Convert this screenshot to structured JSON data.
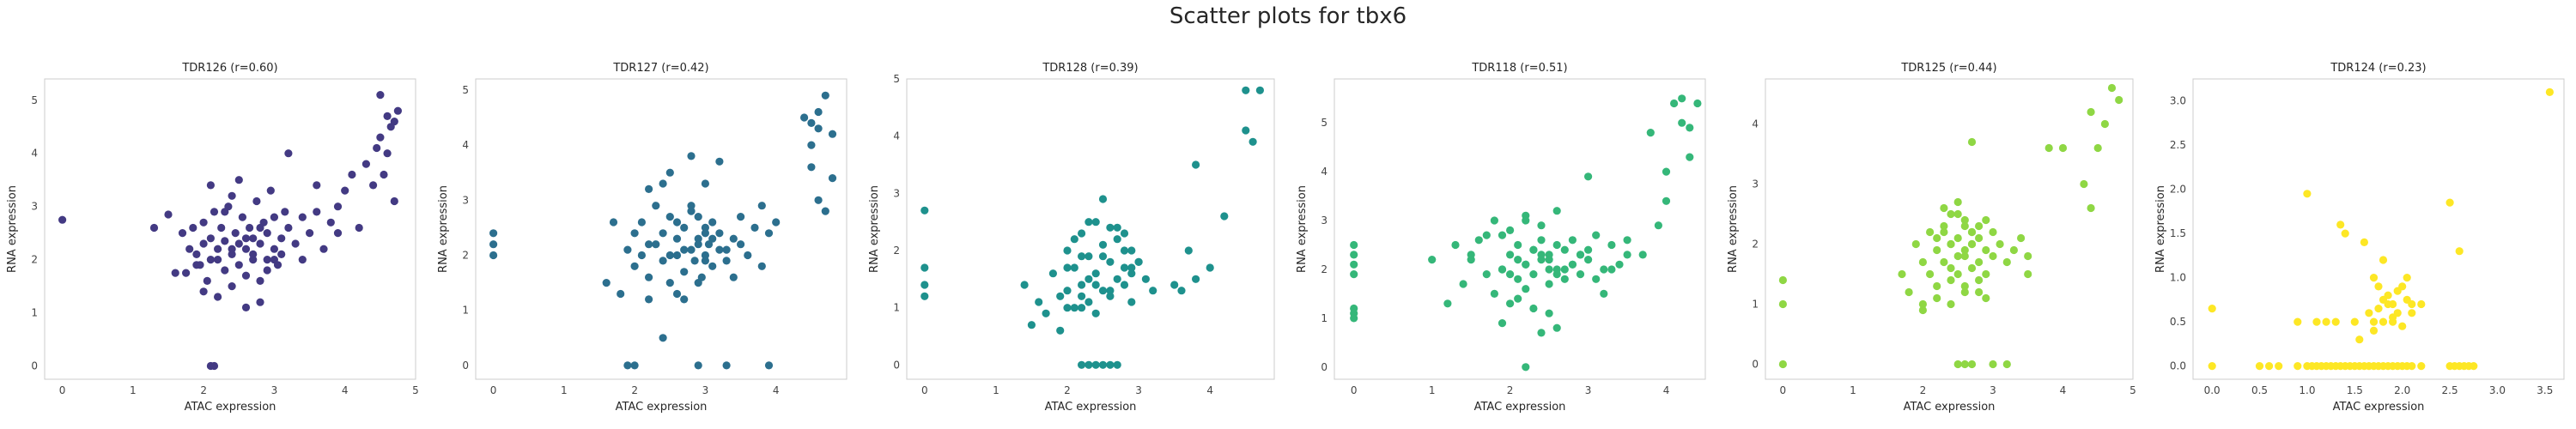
{
  "figure": {
    "title": "Scatter plots for tbx6"
  },
  "chart_data": [
    {
      "type": "scatter",
      "title": "TDR126 (r=0.60)",
      "xlabel": "ATAC expression",
      "ylabel": "RNA expression",
      "color": "#433a83",
      "xlim": [
        -0.25,
        5.0
      ],
      "ylim": [
        -0.25,
        5.4
      ],
      "xticks": [
        0,
        1,
        2,
        3,
        4,
        5
      ],
      "yticks": [
        0,
        1,
        2,
        3,
        4,
        5
      ],
      "grid": false,
      "x": [
        0.0,
        2.1,
        2.15,
        1.3,
        1.5,
        1.6,
        1.7,
        1.75,
        1.8,
        1.85,
        1.9,
        1.95,
        2.0,
        2.0,
        2.05,
        2.1,
        2.1,
        2.15,
        2.2,
        2.2,
        2.25,
        2.3,
        2.3,
        2.35,
        2.4,
        2.4,
        2.45,
        2.5,
        2.5,
        2.55,
        2.6,
        2.6,
        2.65,
        2.7,
        2.7,
        2.75,
        2.8,
        2.8,
        2.85,
        2.9,
        2.9,
        2.95,
        3.0,
        3.0,
        3.05,
        3.1,
        3.15,
        3.2,
        3.3,
        3.4,
        3.5,
        3.6,
        3.7,
        3.8,
        3.9,
        2.0,
        2.2,
        2.4,
        2.6,
        2.8,
        3.0,
        2.3,
        2.5,
        2.7,
        2.9,
        1.9,
        2.1,
        2.6,
        3.2,
        3.4,
        4.0,
        4.1,
        4.2,
        4.3,
        4.4,
        4.45,
        4.5,
        4.55,
        4.6,
        4.65,
        4.7,
        4.75,
        4.5,
        4.6,
        4.7,
        3.6,
        3.9,
        2.4,
        2.8,
        3.1
      ],
      "y": [
        2.75,
        0.0,
        0.0,
        2.6,
        2.85,
        1.75,
        2.5,
        1.75,
        2.2,
        2.6,
        2.1,
        1.9,
        2.3,
        2.7,
        1.6,
        2.0,
        2.4,
        2.9,
        1.3,
        2.2,
        2.6,
        1.8,
        2.35,
        3.0,
        1.5,
        2.1,
        2.5,
        1.9,
        2.3,
        2.8,
        1.7,
        2.2,
        2.6,
        2.0,
        2.4,
        3.1,
        1.6,
        2.3,
        2.7,
        2.0,
        2.5,
        3.3,
        2.2,
        2.8,
        1.9,
        2.4,
        2.9,
        2.6,
        2.3,
        2.8,
        2.5,
        2.9,
        2.2,
        2.7,
        3.0,
        1.4,
        2.0,
        2.2,
        2.4,
        2.6,
        2.0,
        2.9,
        3.5,
        2.1,
        1.8,
        1.9,
        3.4,
        1.1,
        4.0,
        2.0,
        3.3,
        3.6,
        2.6,
        3.8,
        3.4,
        4.1,
        4.3,
        3.6,
        4.0,
        4.5,
        3.1,
        4.8,
        5.1,
        4.7,
        4.6,
        3.4,
        2.5,
        3.2,
        1.2,
        2.1
      ]
    },
    {
      "type": "scatter",
      "title": "TDR127 (r=0.42)",
      "xlabel": "ATAC expression",
      "ylabel": "RNA expression",
      "color": "#2c6f8e",
      "xlim": [
        -0.25,
        5.0
      ],
      "ylim": [
        -0.25,
        5.2
      ],
      "xticks": [
        0,
        1,
        2,
        3,
        4
      ],
      "yticks": [
        0,
        1,
        2,
        3,
        4,
        5
      ],
      "grid": false,
      "x": [
        0.0,
        0.0,
        0.0,
        1.6,
        1.7,
        1.8,
        1.9,
        2.0,
        2.0,
        2.1,
        2.2,
        2.2,
        2.3,
        2.4,
        2.4,
        2.5,
        2.5,
        2.6,
        2.6,
        2.7,
        2.7,
        2.8,
        2.8,
        2.85,
        2.9,
        2.9,
        2.95,
        3.0,
        3.0,
        3.05,
        3.1,
        3.1,
        3.2,
        3.2,
        3.3,
        3.4,
        3.5,
        3.6,
        3.7,
        3.8,
        3.9,
        4.0,
        2.3,
        2.5,
        2.7,
        2.9,
        3.1,
        3.3,
        2.6,
        2.8,
        3.0,
        2.4,
        2.2,
        1.9,
        2.0,
        2.4,
        2.7,
        2.9,
        3.3,
        3.9,
        2.2,
        2.5,
        2.8,
        3.0,
        3.2,
        2.6,
        2.9,
        3.4,
        4.4,
        4.5,
        4.6,
        4.7,
        4.8,
        4.5,
        4.6,
        4.7,
        4.8,
        4.5,
        4.6,
        3.8,
        2.1,
        3.0,
        3.5
      ],
      "y": [
        2.4,
        2.2,
        2.0,
        1.5,
        2.6,
        1.3,
        2.1,
        2.4,
        1.8,
        2.6,
        1.6,
        2.2,
        2.9,
        1.9,
        2.4,
        1.5,
        2.7,
        2.0,
        2.3,
        1.7,
        2.5,
        2.1,
        2.9,
        1.9,
        2.3,
        2.7,
        1.6,
        2.0,
        2.5,
        2.2,
        1.8,
        2.6,
        2.1,
        2.4,
        1.9,
        2.3,
        2.7,
        2.0,
        2.5,
        1.8,
        2.4,
        2.6,
        2.2,
        2.0,
        2.1,
        2.2,
        2.3,
        2.1,
        2.6,
        2.8,
        2.4,
        3.3,
        1.2,
        0.0,
        0.0,
        0.5,
        1.2,
        0.0,
        0.0,
        0.0,
        3.2,
        3.5,
        3.8,
        3.3,
        3.7,
        1.3,
        1.5,
        1.6,
        4.5,
        4.4,
        4.3,
        4.9,
        4.2,
        3.6,
        3.0,
        2.8,
        3.4,
        4.0,
        4.6,
        2.9,
        2.0,
        1.9,
        2.2
      ]
    },
    {
      "type": "scatter",
      "title": "TDR128 (r=0.39)",
      "xlabel": "ATAC expression",
      "ylabel": "RNA expression",
      "color": "#1e918d",
      "xlim": [
        -0.25,
        4.9
      ],
      "ylim": [
        -0.25,
        5.0
      ],
      "xticks": [
        0,
        1,
        2,
        3,
        4
      ],
      "yticks": [
        0,
        1,
        2,
        3,
        4,
        5
      ],
      "grid": false,
      "x": [
        0.0,
        0.0,
        0.0,
        0.0,
        1.4,
        1.5,
        1.6,
        1.7,
        1.8,
        1.9,
        1.9,
        2.0,
        2.0,
        2.1,
        2.1,
        2.2,
        2.2,
        2.3,
        2.3,
        2.4,
        2.4,
        2.5,
        2.5,
        2.6,
        2.6,
        2.7,
        2.7,
        2.8,
        2.8,
        2.9,
        2.9,
        3.0,
        3.1,
        3.2,
        2.3,
        2.5,
        2.7,
        2.2,
        2.4,
        2.6,
        2.8,
        2.0,
        2.9,
        2.3,
        2.5,
        2.6,
        2.2,
        2.1,
        2.3,
        2.5,
        2.7,
        2.9,
        2.0,
        2.2,
        2.4,
        2.6,
        2.8,
        3.0,
        3.6,
        3.7,
        3.8,
        4.0,
        4.2,
        4.5,
        4.6,
        4.7,
        4.5,
        3.8,
        3.5,
        2.4,
        2.2
      ],
      "y": [
        2.7,
        1.7,
        1.4,
        1.2,
        1.4,
        0.7,
        1.1,
        0.9,
        1.6,
        1.2,
        0.6,
        2.0,
        1.3,
        1.7,
        1.0,
        2.3,
        1.4,
        1.9,
        1.1,
        2.5,
        1.6,
        2.1,
        1.3,
        1.8,
        1.2,
        2.2,
        1.5,
        2.0,
        1.4,
        1.6,
        1.1,
        1.8,
        1.5,
        1.3,
        0.0,
        0.0,
        0.0,
        0.0,
        0.0,
        0.0,
        1.7,
        1.7,
        2.0,
        2.5,
        2.9,
        2.4,
        1.9,
        2.2,
        1.5,
        1.9,
        2.4,
        1.7,
        1.0,
        1.2,
        1.4,
        1.3,
        2.3,
        1.8,
        1.3,
        2.0,
        1.5,
        1.7,
        2.6,
        4.1,
        3.9,
        4.8,
        4.8,
        3.5,
        1.4,
        0.9,
        1.0
      ]
    },
    {
      "type": "scatter",
      "title": "TDR118 (r=0.51)",
      "xlabel": "ATAC expression",
      "ylabel": "RNA expression",
      "color": "#35b779",
      "xlim": [
        -0.25,
        4.5
      ],
      "ylim": [
        -0.25,
        5.9
      ],
      "xticks": [
        0,
        1,
        2,
        3,
        4
      ],
      "yticks": [
        0,
        1,
        2,
        3,
        4,
        5
      ],
      "grid": false,
      "x": [
        0.0,
        0.0,
        0.0,
        0.0,
        0.0,
        0.0,
        0.0,
        1.0,
        1.2,
        1.3,
        1.4,
        1.5,
        1.6,
        1.7,
        1.8,
        1.9,
        1.9,
        2.0,
        2.0,
        2.1,
        2.1,
        2.2,
        2.2,
        2.3,
        2.3,
        2.4,
        2.4,
        2.5,
        2.5,
        2.6,
        2.6,
        2.7,
        2.7,
        2.8,
        2.8,
        2.9,
        2.9,
        3.0,
        3.1,
        3.2,
        3.3,
        3.4,
        3.5,
        1.8,
        2.0,
        2.2,
        2.4,
        2.6,
        2.1,
        2.3,
        2.5,
        1.9,
        2.2,
        2.4,
        2.6,
        1.5,
        1.7,
        1.9,
        2.1,
        2.3,
        2.5,
        2.7,
        2.9,
        3.1,
        3.3,
        3.5,
        2.0,
        2.2,
        2.4,
        2.6,
        2.8,
        3.0,
        2.2,
        3.0,
        3.2,
        3.8,
        3.9,
        4.0,
        4.1,
        4.2,
        4.3,
        4.2,
        4.4,
        4.3,
        4.0,
        3.7,
        2.5
      ],
      "y": [
        2.5,
        2.3,
        2.1,
        1.9,
        1.2,
        1.1,
        1.0,
        2.2,
        1.3,
        2.5,
        1.7,
        2.2,
        2.6,
        1.9,
        1.5,
        2.0,
        2.7,
        1.3,
        2.3,
        1.8,
        2.5,
        2.1,
        1.6,
        2.4,
        1.9,
        2.2,
        2.6,
        1.7,
        2.3,
        2.0,
        2.5,
        1.8,
        2.4,
        2.1,
        2.6,
        1.9,
        2.3,
        2.2,
        2.7,
        2.0,
        2.5,
        2.1,
        2.6,
        3.0,
        2.8,
        3.1,
        2.9,
        3.2,
        1.4,
        1.2,
        1.1,
        0.9,
        0.0,
        0.7,
        0.8,
        2.3,
        2.7,
        2.0,
        2.2,
        2.4,
        2.2,
        2.0,
        2.3,
        1.8,
        2.0,
        2.3,
        1.9,
        2.1,
        2.3,
        1.9,
        2.1,
        2.4,
        3.0,
        3.9,
        1.5,
        4.8,
        2.9,
        3.4,
        5.4,
        5.5,
        4.3,
        5.0,
        5.4,
        4.9,
        4.0,
        2.3,
        2.0
      ]
    },
    {
      "type": "scatter",
      "title": "TDR125 (r=0.44)",
      "xlabel": "ATAC expression",
      "ylabel": "RNA expression",
      "color": "#8fd744",
      "xlim": [
        -0.25,
        5.0
      ],
      "ylim": [
        -0.25,
        4.75
      ],
      "xticks": [
        0,
        1,
        2,
        3,
        4,
        5
      ],
      "yticks": [
        0,
        1,
        2,
        3,
        4
      ],
      "grid": false,
      "x": [
        0.0,
        0.0,
        0.0,
        1.7,
        1.8,
        1.9,
        2.0,
        2.0,
        2.1,
        2.1,
        2.2,
        2.2,
        2.3,
        2.3,
        2.4,
        2.4,
        2.4,
        2.5,
        2.5,
        2.5,
        2.6,
        2.6,
        2.6,
        2.7,
        2.7,
        2.7,
        2.8,
        2.8,
        2.8,
        2.9,
        2.9,
        3.0,
        3.0,
        3.1,
        3.2,
        3.3,
        3.4,
        3.5,
        2.3,
        2.5,
        2.7,
        2.9,
        2.2,
        2.4,
        2.6,
        2.8,
        2.4,
        2.6,
        2.5,
        2.7,
        2.3,
        2.6,
        2.2,
        2.4,
        2.8,
        2.0,
        2.5,
        3.0,
        2.6,
        2.7,
        3.2,
        3.8,
        4.0,
        4.3,
        4.4,
        4.5,
        4.6,
        4.7,
        4.8,
        4.4,
        3.5,
        2.7,
        2.9
      ],
      "y": [
        1.4,
        1.0,
        0.0,
        1.5,
        1.2,
        2.0,
        1.7,
        1.0,
        2.2,
        1.5,
        1.9,
        1.3,
        2.3,
        1.7,
        2.5,
        2.0,
        1.4,
        2.7,
        2.1,
        1.5,
        2.4,
        1.8,
        1.2,
        2.2,
        1.6,
        2.0,
        2.3,
        1.7,
        2.1,
        1.9,
        1.5,
        2.2,
        1.8,
        2.0,
        1.7,
        1.9,
        2.1,
        1.8,
        2.6,
        2.5,
        2.2,
        2.4,
        1.1,
        1.0,
        1.3,
        1.2,
        2.0,
        1.9,
        1.8,
        2.0,
        2.2,
        2.3,
        2.1,
        1.6,
        1.4,
        0.9,
        0.0,
        0.0,
        0.0,
        0.0,
        0.0,
        3.6,
        3.6,
        3.0,
        2.6,
        3.6,
        4.0,
        4.6,
        4.4,
        4.2,
        1.5,
        3.7,
        1.1
      ]
    },
    {
      "type": "scatter",
      "title": "TDR124 (r=0.23)",
      "xlabel": "ATAC expression",
      "ylabel": "RNA expression",
      "color": "#fde725",
      "xlim": [
        -0.2,
        3.7
      ],
      "ylim": [
        -0.15,
        3.25
      ],
      "xticks": [
        0.0,
        0.5,
        1.0,
        1.5,
        2.0,
        2.5,
        3.0,
        3.5
      ],
      "yticks": [
        0.0,
        0.5,
        1.0,
        1.5,
        2.0,
        2.5,
        3.0
      ],
      "grid": false,
      "x": [
        0.0,
        0.0,
        0.5,
        0.6,
        0.7,
        0.9,
        1.0,
        1.05,
        1.1,
        1.15,
        1.2,
        1.25,
        1.3,
        1.35,
        1.4,
        1.45,
        1.5,
        1.55,
        1.6,
        1.65,
        1.7,
        1.75,
        1.8,
        1.85,
        1.9,
        1.95,
        2.0,
        2.05,
        2.1,
        2.2,
        2.5,
        2.55,
        2.6,
        2.65,
        2.7,
        2.75,
        1.0,
        1.2,
        1.35,
        1.4,
        1.6,
        1.7,
        1.75,
        1.8,
        1.85,
        1.9,
        1.95,
        2.0,
        2.05,
        1.65,
        1.75,
        1.85,
        1.95,
        2.05,
        1.55,
        1.7,
        1.8,
        1.9,
        2.0,
        2.1,
        2.2,
        0.9,
        1.1,
        1.3,
        1.5,
        1.7,
        1.9,
        2.1,
        1.8,
        2.5,
        2.6,
        3.55
      ],
      "y": [
        0.65,
        0.0,
        0.0,
        0.0,
        0.0,
        0.0,
        0.0,
        0.0,
        0.0,
        0.0,
        0.0,
        0.0,
        0.0,
        0.0,
        0.0,
        0.0,
        0.0,
        0.0,
        0.0,
        0.0,
        0.0,
        0.0,
        0.0,
        0.0,
        0.0,
        0.0,
        0.0,
        0.0,
        0.0,
        0.0,
        0.0,
        0.0,
        0.0,
        0.0,
        0.0,
        0.0,
        1.95,
        0.5,
        1.6,
        1.5,
        1.4,
        1.0,
        0.9,
        0.75,
        0.8,
        0.7,
        0.85,
        0.9,
        1.0,
        0.6,
        0.65,
        0.7,
        0.6,
        0.75,
        0.3,
        0.4,
        0.5,
        0.55,
        0.45,
        0.6,
        0.7,
        0.5,
        0.5,
        0.5,
        0.5,
        0.5,
        0.5,
        0.7,
        1.2,
        1.85,
        1.3,
        3.1
      ]
    }
  ]
}
